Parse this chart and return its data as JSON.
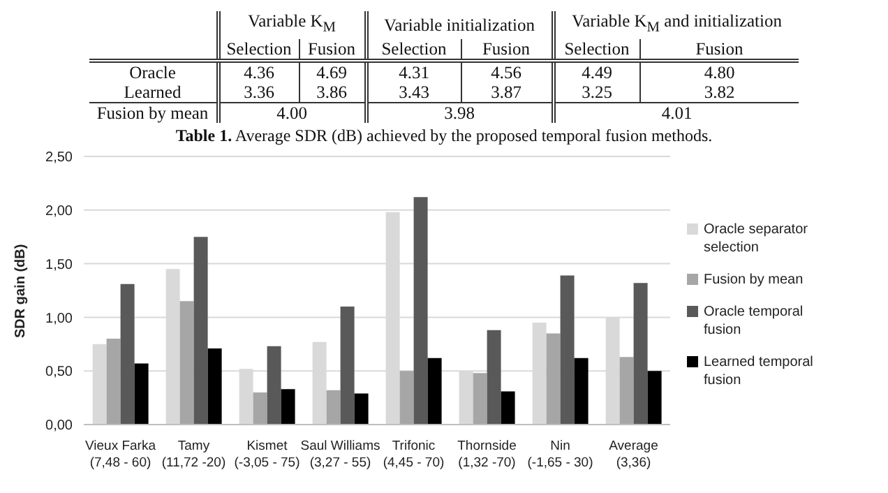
{
  "chart_data": {
    "type": "bar",
    "ylabel": "SDR gain (dB)",
    "categories": [
      "Vieux Farka\n(7,48 - 60)",
      "Tamy\n(11,72 -20)",
      "Kismet\n(-3,05 - 75)",
      "Saul Williams\n(3,27 - 55)",
      "Trifonic\n(4,45 - 70)",
      "Thornside\n(1,32 -70)",
      "Nin\n(-1,65 - 30)",
      "Average\n(3,36)"
    ],
    "series": [
      {
        "name": "Oracle separator selection",
        "color": "#d9d9d9",
        "values": [
          0.75,
          1.45,
          0.52,
          0.77,
          1.98,
          0.5,
          0.95,
          1.0
        ]
      },
      {
        "name": "Fusion by mean",
        "color": "#a6a6a6",
        "values": [
          0.8,
          1.15,
          0.3,
          0.32,
          0.5,
          0.48,
          0.85,
          0.63
        ]
      },
      {
        "name": "Oracle temporal fusion",
        "color": "#595959",
        "values": [
          1.31,
          1.75,
          0.73,
          1.1,
          2.12,
          0.88,
          1.39,
          1.32
        ]
      },
      {
        "name": "Learned temporal fusion",
        "color": "#000000",
        "values": [
          0.57,
          0.71,
          0.33,
          0.29,
          0.62,
          0.31,
          0.62,
          0.5
        ]
      }
    ],
    "ylim": [
      0,
      2.5
    ],
    "yticks": [
      {
        "value": 0,
        "label": "0,00"
      },
      {
        "value": 0.5,
        "label": "0,50"
      },
      {
        "value": 1,
        "label": "1,00"
      },
      {
        "value": 1.5,
        "label": "1,50"
      },
      {
        "value": 2,
        "label": "2,00"
      },
      {
        "value": 2.5,
        "label": "2,50"
      }
    ],
    "grid": "y",
    "legend": "right",
    "annotations": [
      "\tVariable K$_{M}$\tVariable initialization\tVariable K$_{M}$ and initialization",
      "\tSelection\tFusion\tSelection\tFusion\tSelection\tFusion",
      "Oracle\t4.36\t4.69\t4.31\t4.56\t4.49\t4.80",
      "Learned\t3.36\t3.86\t3.43\t3.87\t3.25\t3.82",
      "Fusion by mean\t4.00\t3.98\t4.01",
      "Table 1. Average SDR (dB) achieved by the proposed temporal fusion methods."
    ]
  }
}
